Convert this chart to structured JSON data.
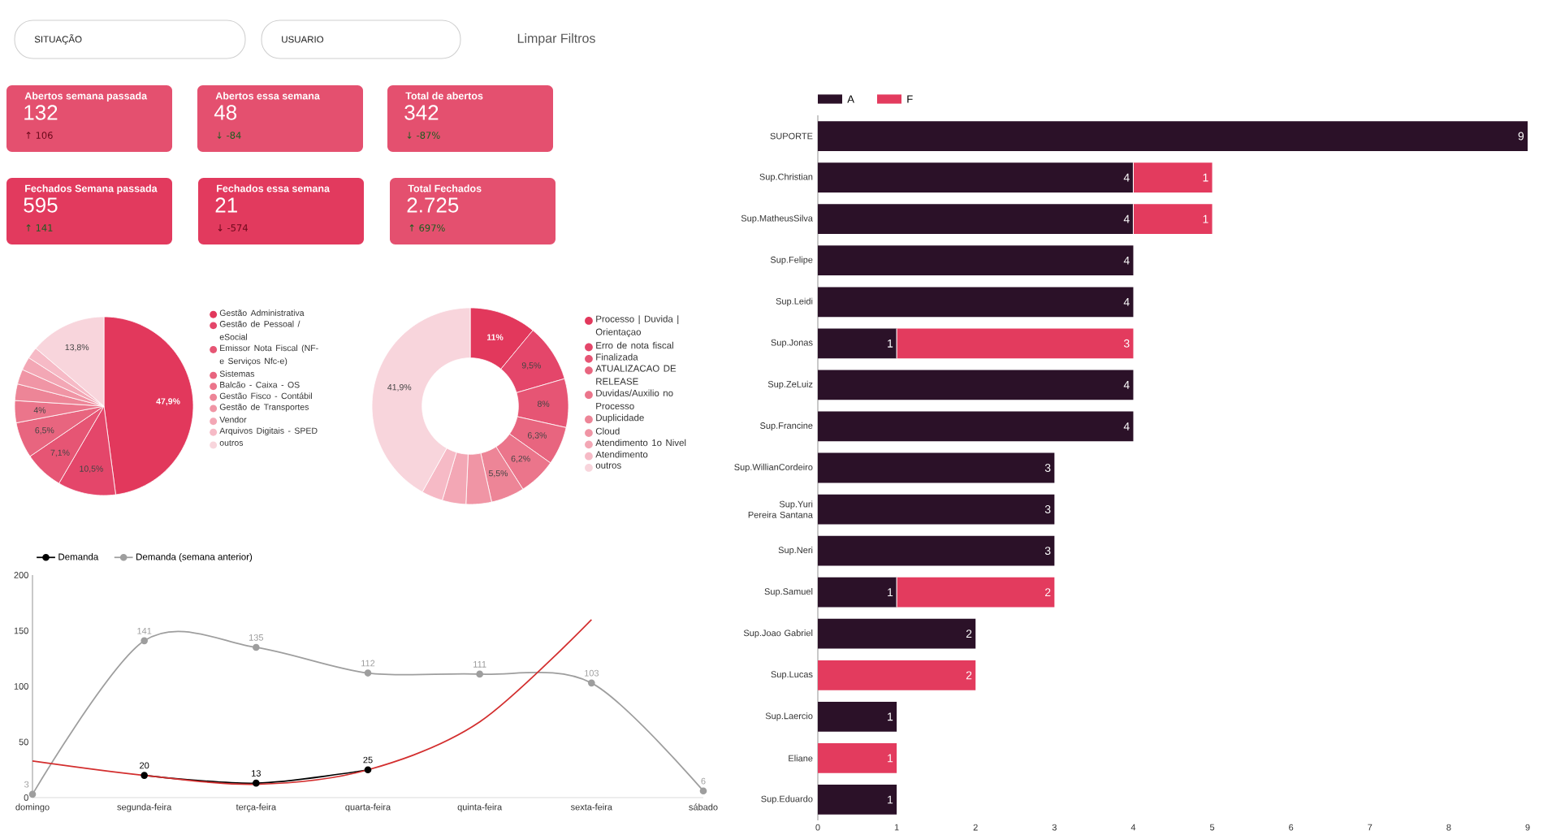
{
  "chart_data": [
    {
      "type": "other",
      "annotations": [
        "SITUAÇÃO",
        "USUARIO",
        "Limpar Filtros",
        "Abertos semana passada",
        "132",
        "↑ 106",
        "Abertos essa semana",
        "48",
        "↓ -84",
        "Total de abertos",
        "342",
        "↓ -87%",
        "Fechados Semana passada",
        "595",
        "↑ 141",
        "Fechados essa semana",
        "21",
        "↓ -574",
        "Total Fechados",
        "2.725",
        "↑ 697%"
      ]
    },
    {
      "type": "pie",
      "categories": [
        "Gestão Administrativa",
        "Gestão de Pessoal / eSocial",
        "Emissor Nota Fiscal (NF-e Serviços Nfc-e)",
        "Sistemas",
        "Balcão - Caixa - OS",
        "Gestão Fisco - Contábil",
        "Gestão de Transportes",
        "Vendor",
        "Arquivos Digitais - SPED",
        "outros"
      ],
      "values": [
        47.9,
        10.5,
        7.1,
        6.5,
        4,
        3,
        2.7,
        2.4,
        2.1,
        13.8
      ],
      "value_labels": [
        "47,9%",
        "10,5%",
        "7,1%",
        "6,5%",
        "4%",
        null,
        null,
        null,
        null,
        "13,8%"
      ],
      "colors": [
        "#e2385c",
        "#e4466a",
        "#e65574",
        "#e8657f",
        "#eb758b",
        "#ed8597",
        "#f095a5",
        "#f3a7b5",
        "#f6bac6",
        "#f8d5dc"
      ],
      "legend": "right"
    },
    {
      "type": "donut",
      "categories": [
        "Processo | Duvida | Orientaçao",
        "Erro de nota fiscal",
        "Finalizada",
        "ATUALIZACAO DE RELEASE",
        "Duvidas/Auxilio no Processo",
        "Duplicidade",
        "Cloud",
        "Atendimento 1o Nivel",
        "Atendimento",
        "outros"
      ],
      "values": [
        11,
        9.5,
        8,
        6.3,
        6.2,
        5.5,
        4.2,
        3.9,
        3.5,
        41.9
      ],
      "value_labels": [
        "11%",
        "9,5%",
        "8%",
        "6,3%",
        "6,2%",
        "5,5%",
        null,
        null,
        null,
        "41,9%"
      ],
      "colors": [
        "#e2385c",
        "#e4466a",
        "#e65574",
        "#e8657f",
        "#eb758b",
        "#ed8597",
        "#f095a5",
        "#f3a7b5",
        "#f6bac6",
        "#f8d5dc"
      ],
      "legend": "right"
    },
    {
      "type": "line",
      "categories": [
        "domingo",
        "segunda-feira",
        "terça-feira",
        "quarta-feira",
        "quinta-feira",
        "sexta-feira",
        "sábado"
      ],
      "series": [
        {
          "name": "Demanda",
          "color": "#000000",
          "values": [
            null,
            20,
            13,
            25,
            null,
            null,
            null
          ],
          "value_labels": [
            null,
            "20",
            "13",
            "25",
            null,
            null,
            null
          ]
        },
        {
          "name": "Demanda (semana anterior)",
          "color": "#9e9e9e",
          "values": [
            3,
            141,
            135,
            112,
            111,
            103,
            6
          ],
          "value_labels": [
            "3",
            "141",
            "135",
            "112",
            "111",
            "103",
            "6"
          ]
        },
        {
          "color": "#d32f2f",
          "values": [
            33,
            20,
            12,
            25,
            68,
            160,
            null
          ],
          "marker": "none"
        }
      ],
      "ylim": [
        0,
        200
      ],
      "yticks": [
        0,
        50,
        100,
        150,
        200
      ],
      "marker": "circle",
      "legend": "top left"
    },
    {
      "type": "bar",
      "orientation": "horizontal",
      "stacked": true,
      "categories": [
        "SUPORTE",
        "Sup.Christian",
        "Sup.MatheusSilva",
        "Sup.Felipe",
        "Sup.Leidi",
        "Sup.Jonas",
        "Sup.ZeLuiz",
        "Sup.Francine",
        "Sup.WillianCordeiro",
        "Sup.Yuri Pereira Santana",
        "Sup.Neri",
        "Sup.Samuel",
        "Sup.Joao Gabriel",
        "Sup.Lucas",
        "Sup.Laercio",
        "Eliane",
        "Sup.Eduardo"
      ],
      "series": [
        {
          "name": "A",
          "color": "#2b1128",
          "values": [
            9,
            4,
            4,
            4,
            4,
            1,
            4,
            4,
            3,
            3,
            3,
            1,
            2,
            null,
            1,
            null,
            1
          ]
        },
        {
          "name": "F",
          "color": "#e33b5e",
          "values": [
            null,
            1,
            1,
            null,
            null,
            3,
            null,
            null,
            null,
            null,
            null,
            2,
            null,
            2,
            null,
            1,
            null
          ]
        }
      ],
      "xlim": [
        0,
        9
      ],
      "xticks": [
        0,
        1,
        2,
        3,
        4,
        5,
        6,
        7,
        8,
        9
      ],
      "data_labels": true,
      "legend": "top left"
    }
  ]
}
